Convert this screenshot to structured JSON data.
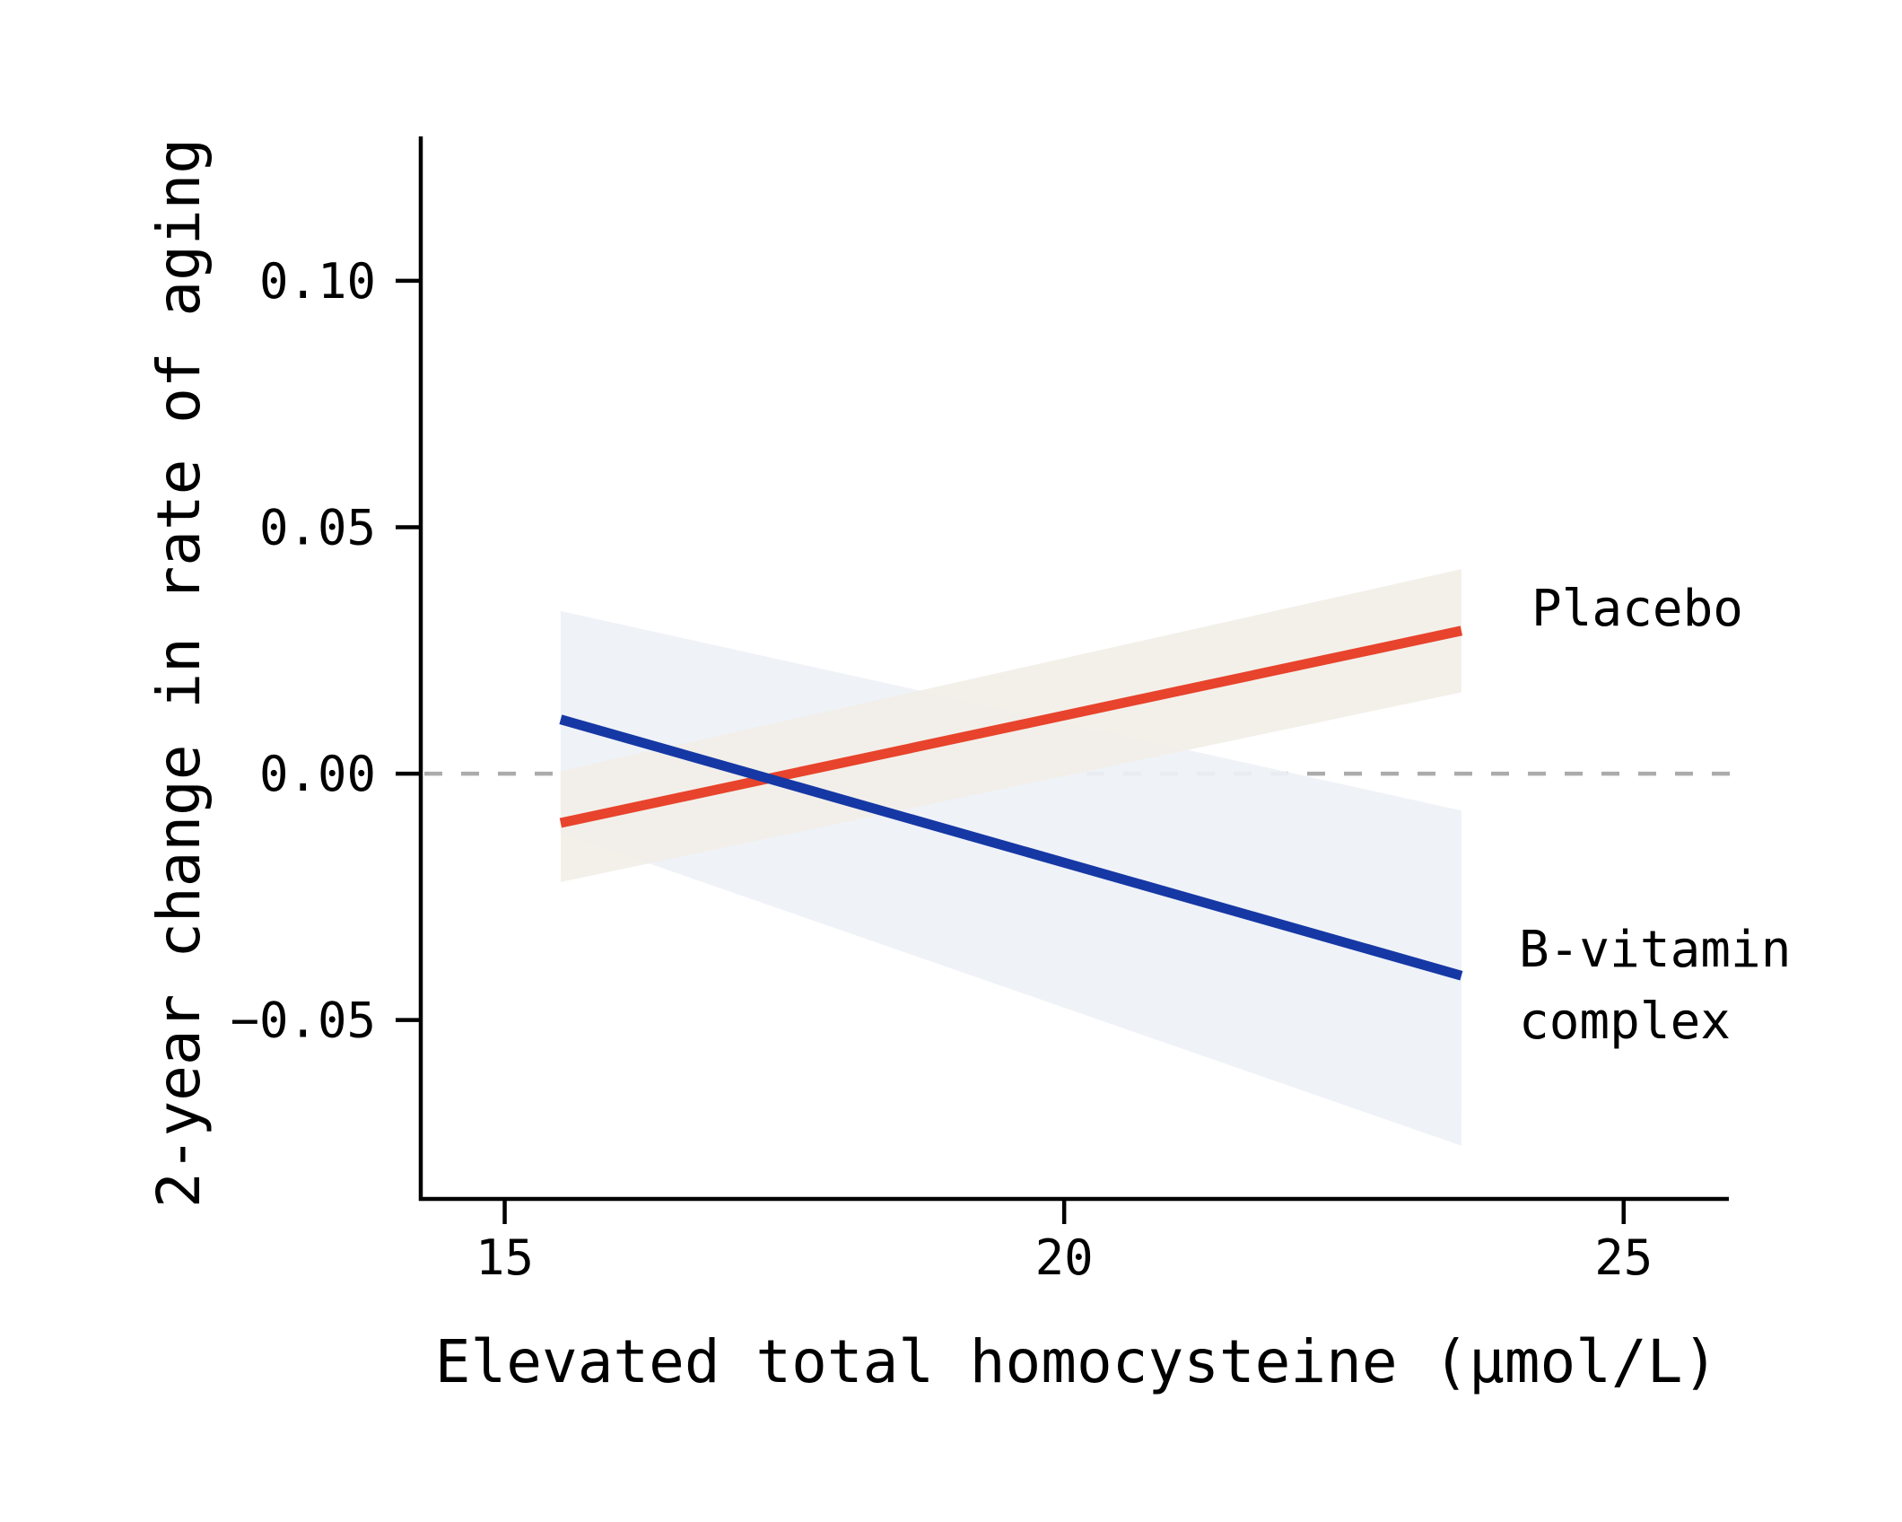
{
  "figure": {
    "background": "#FFFFFF",
    "text_color": "#000000",
    "axis_color": "#000000"
  },
  "chart_data": {
    "type": "line",
    "title": "",
    "xlabel": "Elevated total homocysteine (μmol/L)",
    "ylabel": "2-year change in rate of aging",
    "xlim": [
      14.25,
      25.94
    ],
    "ylim": [
      -0.0863,
      0.1293
    ],
    "grid": false,
    "legend_position": "inline-right-annotations",
    "x_ticks": [
      {
        "value": 15,
        "label": "15"
      },
      {
        "value": 20,
        "label": "20"
      },
      {
        "value": 25,
        "label": "25"
      }
    ],
    "y_ticks": [
      {
        "value": 0.1,
        "label": "0.10"
      },
      {
        "value": 0.05,
        "label": "0.05"
      },
      {
        "value": 0.0,
        "label": "0.00"
      },
      {
        "value": -0.05,
        "label": "−0.05"
      }
    ],
    "zero_line": {
      "y": 0.0,
      "style": "dashed",
      "color": "#ABABAB"
    },
    "series": [
      {
        "name": "Placebo",
        "label_lines": [
          "Placebo"
        ],
        "color": "#E8432C",
        "band_color": "#F2EFE8",
        "x": [
          15.5,
          23.55
        ],
        "y": [
          -0.01,
          0.029
        ],
        "ci_upper": [
          0.0005,
          0.0415
        ],
        "ci_lower": [
          -0.022,
          0.0165
        ]
      },
      {
        "name": "B-vitamin complex",
        "label_lines": [
          "B-vitamin",
          "complex"
        ],
        "color": "#1638A5",
        "band_color": "#EEF1F6",
        "x": [
          15.5,
          23.55
        ],
        "y": [
          0.011,
          -0.041
        ],
        "ci_upper": [
          0.033,
          -0.0075
        ],
        "ci_lower": [
          -0.012,
          -0.0755
        ]
      }
    ]
  }
}
